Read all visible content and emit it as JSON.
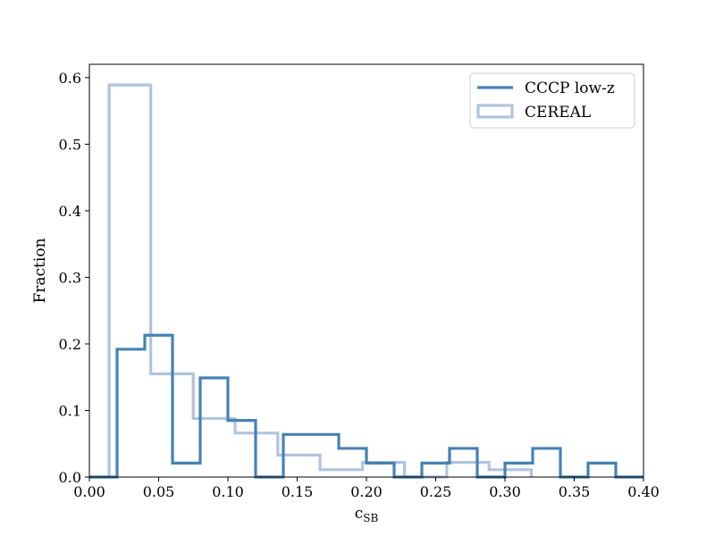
{
  "chart_data": {
    "type": "histogram-step",
    "title": "",
    "xlabel": "c",
    "xlabel_sub": "SB",
    "ylabel": "Fraction",
    "xlim": [
      0.0,
      0.4
    ],
    "ylim": [
      0.0,
      0.62
    ],
    "xticks": [
      0.0,
      0.05,
      0.1,
      0.15,
      0.2,
      0.25,
      0.3,
      0.35,
      0.4
    ],
    "xtick_labels": [
      "0.00",
      "0.05",
      "0.10",
      "0.15",
      "0.20",
      "0.25",
      "0.30",
      "0.35",
      "0.40"
    ],
    "yticks": [
      0.0,
      0.1,
      0.2,
      0.3,
      0.4,
      0.5,
      0.6
    ],
    "ytick_labels": [
      "0.0",
      "0.1",
      "0.2",
      "0.3",
      "0.4",
      "0.5",
      "0.6"
    ],
    "grid": false,
    "legend_position": "top-right",
    "series": [
      {
        "name": "CCCP low-z",
        "color": "#4682b4",
        "bin_edges": [
          0.0,
          0.02,
          0.04,
          0.06,
          0.08,
          0.1,
          0.12,
          0.14,
          0.16,
          0.18,
          0.2,
          0.22,
          0.24,
          0.26,
          0.28,
          0.3,
          0.32,
          0.34,
          0.36,
          0.38,
          0.4
        ],
        "values": [
          0.0,
          0.192,
          0.213,
          0.021,
          0.149,
          0.085,
          0.0,
          0.064,
          0.064,
          0.043,
          0.021,
          0.0,
          0.021,
          0.043,
          0.0,
          0.021,
          0.043,
          0.0,
          0.021,
          0.0
        ]
      },
      {
        "name": "CEREAL",
        "color": "#b0c4de",
        "bin_edges": [
          0.0,
          0.0143,
          0.0443,
          0.075,
          0.1052,
          0.136,
          0.1665,
          0.1972,
          0.2275,
          0.258,
          0.2885,
          0.319
        ],
        "values": [
          0.0,
          0.589,
          0.155,
          0.088,
          0.066,
          0.033,
          0.011,
          0.022,
          0.0,
          0.022,
          0.011
        ]
      }
    ]
  }
}
